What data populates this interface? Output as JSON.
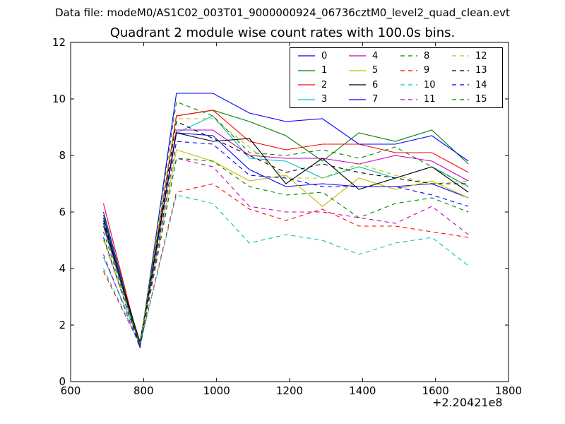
{
  "suptitle": "Data file: modeM0/AS1C02_003T01_9000000924_06736cztM0_level2_quad_clean.evt",
  "chart_data": {
    "type": "line",
    "title": "Quadrant 2 module wise count rates with 100.0s bins.",
    "x_offset_label": "+2.20421e8",
    "xlabel": "",
    "ylabel": "",
    "xlim": [
      600,
      1800
    ],
    "ylim": [
      0,
      12
    ],
    "xticks": [
      "600",
      "800",
      "1000",
      "1200",
      "1400",
      "1600",
      "1800"
    ],
    "yticks": [
      "0",
      "2",
      "4",
      "6",
      "8",
      "10",
      "12"
    ],
    "grid": false,
    "legend_position": "top-right",
    "x": [
      690,
      790,
      890,
      990,
      1090,
      1190,
      1290,
      1390,
      1490,
      1590,
      1690
    ],
    "series": [
      {
        "name": "0",
        "color": "#0000ff",
        "dash": "solid",
        "values": [
          6.0,
          1.3,
          8.8,
          8.7,
          7.5,
          6.9,
          7.0,
          6.9,
          6.9,
          7.0,
          6.5
        ]
      },
      {
        "name": "1",
        "color": "#008000",
        "dash": "solid",
        "values": [
          5.9,
          1.3,
          9.4,
          9.6,
          9.2,
          8.7,
          7.8,
          8.8,
          8.5,
          8.9,
          7.7
        ]
      },
      {
        "name": "2",
        "color": "#ff0000",
        "dash": "solid",
        "values": [
          6.3,
          1.2,
          9.4,
          9.6,
          8.5,
          8.2,
          8.4,
          8.4,
          8.1,
          8.1,
          7.4
        ]
      },
      {
        "name": "3",
        "color": "#00bfbf",
        "dash": "solid",
        "values": [
          4.4,
          1.4,
          8.8,
          9.4,
          7.9,
          7.8,
          7.2,
          7.6,
          7.2,
          7.6,
          6.9
        ]
      },
      {
        "name": "4",
        "color": "#bf00bf",
        "dash": "solid",
        "values": [
          5.5,
          1.3,
          8.9,
          8.9,
          8.0,
          7.9,
          7.9,
          7.7,
          8.0,
          7.8,
          7.1
        ]
      },
      {
        "name": "5",
        "color": "#bfbf00",
        "dash": "solid",
        "values": [
          5.1,
          1.3,
          8.2,
          7.8,
          7.1,
          7.3,
          6.2,
          7.2,
          6.8,
          7.1,
          6.5
        ]
      },
      {
        "name": "6",
        "color": "#000000",
        "dash": "solid",
        "values": [
          5.6,
          1.4,
          8.8,
          8.5,
          8.6,
          7.0,
          7.9,
          6.8,
          7.2,
          7.6,
          6.7
        ]
      },
      {
        "name": "7",
        "color": "#0000ff",
        "dash": "solid",
        "values": [
          5.8,
          1.2,
          10.2,
          10.2,
          9.5,
          9.2,
          9.3,
          8.4,
          8.4,
          8.7,
          7.8
        ]
      },
      {
        "name": "8",
        "color": "#008000",
        "dash": "dashed",
        "values": [
          5.5,
          1.3,
          9.9,
          9.4,
          8.1,
          8.0,
          8.2,
          7.9,
          8.3,
          7.6,
          6.9
        ]
      },
      {
        "name": "9",
        "color": "#ff0000",
        "dash": "dashed",
        "values": [
          3.9,
          1.3,
          6.7,
          7.0,
          6.1,
          5.7,
          6.1,
          5.5,
          5.5,
          5.3,
          5.1
        ]
      },
      {
        "name": "10",
        "color": "#00bfbf",
        "dash": "dashed",
        "values": [
          4.0,
          1.3,
          6.6,
          6.3,
          4.9,
          5.2,
          5.0,
          4.5,
          4.9,
          5.1,
          4.1
        ]
      },
      {
        "name": "11",
        "color": "#bf00bf",
        "dash": "dashed",
        "values": [
          4.5,
          1.2,
          7.9,
          7.6,
          6.2,
          6.0,
          6.0,
          5.8,
          5.6,
          6.2,
          5.2
        ]
      },
      {
        "name": "12",
        "color": "#bfbf00",
        "dash": "dashed",
        "values": [
          5.0,
          1.3,
          9.3,
          9.3,
          8.3,
          7.2,
          7.2,
          7.7,
          7.3,
          7.0,
          7.1
        ]
      },
      {
        "name": "13",
        "color": "#000000",
        "dash": "dashed",
        "values": [
          5.7,
          1.2,
          9.2,
          8.6,
          8.0,
          7.4,
          7.7,
          7.4,
          7.2,
          7.0,
          7.0
        ]
      },
      {
        "name": "14",
        "color": "#0000ff",
        "dash": "dashed",
        "values": [
          5.1,
          1.2,
          8.5,
          8.4,
          7.3,
          7.2,
          6.9,
          6.9,
          6.9,
          6.6,
          6.2
        ]
      },
      {
        "name": "15",
        "color": "#008000",
        "dash": "dashed",
        "values": [
          5.3,
          1.3,
          7.9,
          7.8,
          6.9,
          6.6,
          6.7,
          5.8,
          6.3,
          6.5,
          6.0
        ]
      }
    ]
  }
}
